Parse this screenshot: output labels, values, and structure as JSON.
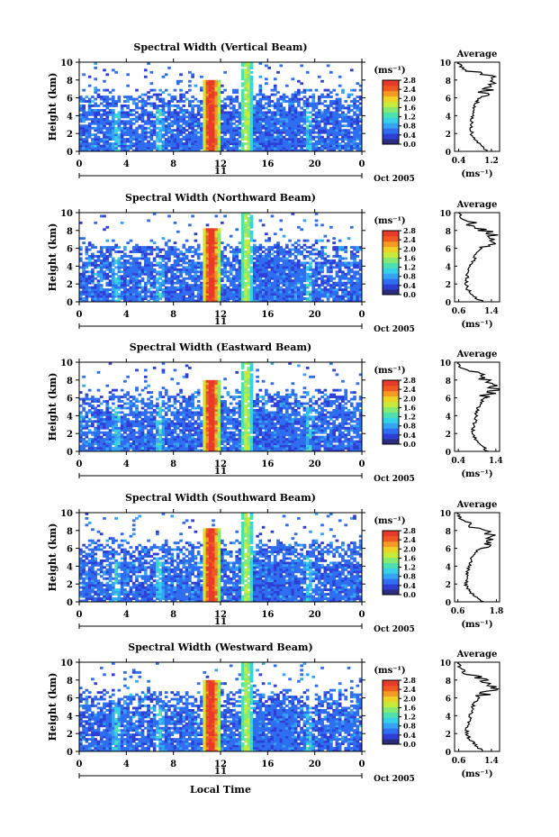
{
  "figure": {
    "xaxis_label": "Local Time",
    "date_label": "Oct 2005",
    "day_label": "11",
    "colorbar_unit": "(ms⁻¹)",
    "average_title": "Average",
    "average_unit": "(ms⁻¹)",
    "ylabel": "Height (km)",
    "colorscale": [
      "#2b2b80",
      "#2f3fd6",
      "#2f6ef0",
      "#34a4f3",
      "#36d0e8",
      "#4fe0b0",
      "#86ea72",
      "#c8ea3a",
      "#f0d327",
      "#f59a22",
      "#f05a22",
      "#e83a2a"
    ],
    "colorbar_ticks": [
      "0.0",
      "0.4",
      "0.8",
      "1.2",
      "1.6",
      "2.0",
      "2.4",
      "2.8"
    ],
    "x_ticks": [
      "0",
      "4",
      "8",
      "12",
      "16",
      "20",
      "0"
    ],
    "y_ticks": [
      "0",
      "2",
      "4",
      "6",
      "8",
      "10"
    ],
    "panels": [
      {
        "title": "Spectral Width (Vertical Beam)"
      },
      {
        "title": "Spectral Width (Northward Beam)"
      },
      {
        "title": "Spectral Width (Eastward Beam)"
      },
      {
        "title": "Spectral Width (Southward Beam)"
      },
      {
        "title": "Spectral Width (Westward Beam)"
      }
    ]
  },
  "chart_data": [
    {
      "type": "heatmap",
      "title": "Spectral Width (Vertical Beam)",
      "xlabel": "",
      "ylabel": "Height (km)",
      "xlim": [
        0,
        24
      ],
      "ylim": [
        0,
        10
      ],
      "clim": [
        0.0,
        2.8
      ],
      "average": {
        "title": "Average",
        "xlabel": "(ms⁻¹)",
        "x_ticks": [
          "0.4",
          "1.2"
        ],
        "xlim": [
          0.3,
          1.4
        ],
        "heights": [
          0,
          0.5,
          1,
          1.5,
          2,
          2.5,
          3,
          3.5,
          4,
          4.5,
          5,
          5.5,
          6,
          6.5,
          7,
          7.5,
          8,
          8.5,
          9,
          9.5,
          10
        ],
        "values": [
          1.1,
          1.0,
          0.85,
          0.75,
          0.72,
          0.7,
          0.7,
          0.72,
          0.74,
          0.78,
          0.8,
          0.85,
          0.9,
          1.0,
          1.15,
          1.25,
          1.1,
          1.2,
          0.6,
          0.45,
          0.4
        ]
      }
    },
    {
      "type": "heatmap",
      "title": "Spectral Width (Northward Beam)",
      "xlabel": "",
      "ylabel": "Height (km)",
      "xlim": [
        0,
        24
      ],
      "ylim": [
        0,
        10
      ],
      "clim": [
        0.0,
        2.8
      ],
      "average": {
        "title": "Average",
        "xlabel": "(ms⁻¹)",
        "x_ticks": [
          "0.6",
          "1.4"
        ],
        "xlim": [
          0.5,
          1.6
        ],
        "heights": [
          0,
          0.5,
          1,
          1.5,
          2,
          2.5,
          3,
          3.5,
          4,
          4.5,
          5,
          5.5,
          6,
          6.5,
          7,
          7.5,
          8,
          8.5,
          9,
          9.5,
          10
        ],
        "values": [
          1.2,
          1.0,
          0.9,
          0.8,
          0.78,
          0.8,
          0.82,
          0.85,
          0.9,
          0.95,
          1.0,
          1.05,
          1.15,
          1.3,
          1.5,
          1.4,
          1.2,
          1.0,
          0.8,
          0.65,
          0.6
        ]
      }
    },
    {
      "type": "heatmap",
      "title": "Spectral Width (Eastward Beam)",
      "xlabel": "",
      "ylabel": "Height (km)",
      "xlim": [
        0,
        24
      ],
      "ylim": [
        0,
        10
      ],
      "clim": [
        0.0,
        2.8
      ],
      "average": {
        "title": "Average",
        "xlabel": "(ms⁻¹)",
        "x_ticks": [
          "0.4",
          "1.4"
        ],
        "xlim": [
          0.3,
          1.5
        ],
        "heights": [
          0,
          0.5,
          1,
          1.5,
          2,
          2.5,
          3,
          3.5,
          4,
          4.5,
          5,
          5.5,
          6,
          6.5,
          7,
          7.5,
          8,
          8.5,
          9,
          9.5,
          10
        ],
        "values": [
          1.2,
          1.05,
          0.95,
          0.85,
          0.8,
          0.8,
          0.82,
          0.85,
          0.88,
          0.9,
          0.95,
          1.0,
          1.1,
          1.25,
          1.4,
          1.3,
          1.2,
          1.0,
          0.65,
          0.45,
          0.4
        ]
      }
    },
    {
      "type": "heatmap",
      "title": "Spectral Width (Southward Beam)",
      "xlabel": "",
      "ylabel": "Height (km)",
      "xlim": [
        0,
        24
      ],
      "ylim": [
        0,
        10
      ],
      "clim": [
        0.0,
        2.8
      ],
      "average": {
        "title": "Average",
        "xlabel": "(ms⁻¹)",
        "x_ticks": [
          "0.6",
          "1.8"
        ],
        "xlim": [
          0.5,
          1.9
        ],
        "heights": [
          0,
          0.5,
          1,
          1.5,
          2,
          2.5,
          3,
          3.5,
          4,
          4.5,
          5,
          5.5,
          6,
          6.5,
          7,
          7.5,
          8,
          8.5,
          9,
          9.5,
          10
        ],
        "values": [
          1.4,
          1.2,
          1.0,
          0.9,
          0.85,
          0.85,
          0.88,
          0.9,
          0.95,
          1.0,
          1.05,
          1.15,
          1.3,
          1.5,
          1.7,
          1.6,
          1.4,
          1.1,
          0.8,
          0.65,
          0.6
        ]
      }
    },
    {
      "type": "heatmap",
      "title": "Spectral Width (Westward Beam)",
      "xlabel": "Local Time",
      "ylabel": "Height (km)",
      "xlim": [
        0,
        24
      ],
      "ylim": [
        0,
        10
      ],
      "clim": [
        0.0,
        2.8
      ],
      "average": {
        "title": "Average",
        "xlabel": "(ms⁻¹)",
        "x_ticks": [
          "0.6",
          "1.4"
        ],
        "xlim": [
          0.5,
          1.6
        ],
        "heights": [
          0,
          0.5,
          1,
          1.5,
          2,
          2.5,
          3,
          3.5,
          4,
          4.5,
          5,
          5.5,
          6,
          6.5,
          7,
          7.5,
          8,
          8.5,
          9,
          9.5,
          10
        ],
        "values": [
          1.2,
          1.05,
          0.95,
          0.85,
          0.8,
          0.8,
          0.82,
          0.85,
          0.88,
          0.92,
          0.95,
          1.0,
          1.1,
          1.25,
          1.4,
          1.3,
          1.15,
          1.0,
          0.75,
          0.62,
          0.6
        ]
      }
    }
  ]
}
